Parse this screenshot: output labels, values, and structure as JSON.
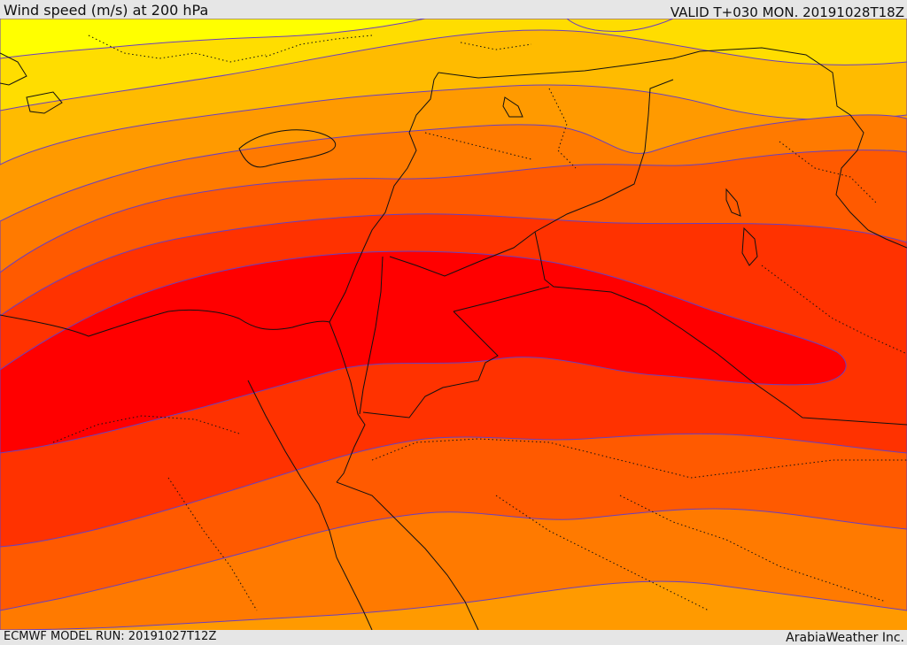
{
  "header": {
    "title": "Wind speed (m/s) at 200 hPa",
    "valid": "VALID T+030 MON. 20191028T18Z"
  },
  "footer": {
    "model_run": "ECMWF MODEL RUN: 20191027T12Z",
    "credit": "ArabiaWeather Inc."
  },
  "map": {
    "variable": "wind speed",
    "units": "m/s",
    "level": "200 hPa",
    "fill_colors": [
      "#ffff00",
      "#ffdd00",
      "#ffbb00",
      "#ff9a00",
      "#ff7a00",
      "#ff5a00",
      "#ff3200",
      "#ff0000"
    ],
    "contour_color": "#6a3fbf",
    "border_color": "#111111"
  }
}
